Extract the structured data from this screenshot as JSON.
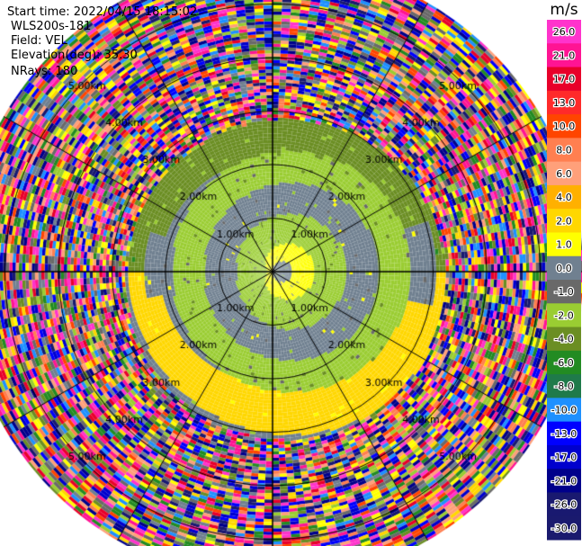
{
  "header": {
    "start_time": "Start time: 2022/04/15 18:15:02",
    "instrument": "WLS200s-181",
    "field": "Field: VEL",
    "elevation": "Elevation(deg): 35.30",
    "nrays": "NRays: 180"
  },
  "colorbar": {
    "unit": "m/s",
    "ticks": [
      "26.0",
      "21.0",
      "17.0",
      "13.0",
      "10.0",
      "8.0",
      "6.0",
      "4.0",
      "2.0",
      "1.0",
      "0.0",
      "-1.0",
      "-2.0",
      "-4.0",
      "-6.0",
      "-8.0",
      "-10.0",
      "-13.0",
      "-17.0",
      "-21.0",
      "-26.0",
      "-30.0"
    ],
    "colors": [
      "#ff33cc",
      "#ff1493",
      "#e8002a",
      "#ff2a2a",
      "#ff4500",
      "#ff7f50",
      "#ffa07a",
      "#ffb000",
      "#ffd700",
      "#ffff00",
      "#708090",
      "#696969",
      "#9acd32",
      "#6b8e23",
      "#228b22",
      "#1f7a4a",
      "#1e90ff",
      "#0000ff",
      "#0000cd",
      "#00008b",
      "#191970",
      "#1a1a6e"
    ]
  },
  "chart_data": {
    "type": "heatmap",
    "projection": "polar PPI (plan position indicator)",
    "field": "VEL",
    "unit": "m/s",
    "nrays": 180,
    "elevation_deg": 35.3,
    "color_scale": {
      "levels": [
        -30.0,
        -26.0,
        -21.0,
        -17.0,
        -13.0,
        -10.0,
        -8.0,
        -6.0,
        -4.0,
        -2.0,
        -1.0,
        0.0,
        1.0,
        2.0,
        4.0,
        6.0,
        8.0,
        10.0,
        13.0,
        17.0,
        21.0,
        26.0
      ]
    },
    "range_rings_km": [
      1,
      2,
      3,
      4,
      5
    ],
    "ring_labels": [
      "1.00km",
      "2.00km",
      "3.00km",
      "4.00km",
      "5.00km"
    ],
    "max_range_km": 5.8,
    "spokes_deg": [
      0,
      30,
      60,
      90,
      120,
      150,
      180,
      210,
      240,
      270,
      300,
      330
    ],
    "coherent_region": {
      "description_bands": [
        {
          "range_km": [
            0,
            0.4
          ],
          "velocity_ms": 1.5
        },
        {
          "range_km": [
            0.4,
            1.0
          ],
          "velocity_ms": -1.5
        },
        {
          "range_km": [
            1.0,
            1.6
          ],
          "velocity_ms": 0.0
        },
        {
          "range_km": [
            1.6,
            2.2
          ],
          "velocity_ms": -2.0
        },
        {
          "range_km": [
            2.2,
            2.7
          ],
          "velocity_ms": 0.0
        },
        {
          "range_km": [
            2.7,
            3.0
          ],
          "velocity_ms": -3.0
        }
      ]
    }
  }
}
